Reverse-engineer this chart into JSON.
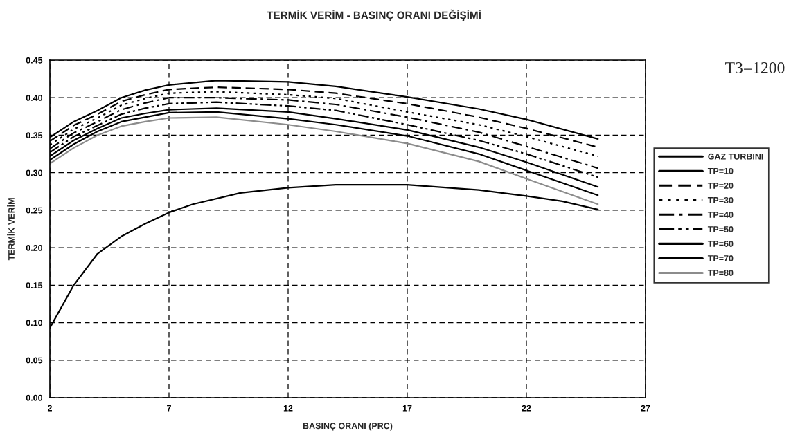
{
  "chart_data": {
    "type": "line",
    "title": "TERMİK VERİM - BASINÇ ORANI DEĞİŞİMİ",
    "xlabel": "BASINÇ ORANI (PRC)",
    "ylabel": "TERMİK VERİM",
    "annotations": [
      "T3=1200"
    ],
    "xlim": [
      2,
      27
    ],
    "xticks": [
      2,
      7,
      12,
      17,
      22,
      27
    ],
    "ylim": [
      0,
      0.45
    ],
    "yticks": [
      {
        "value": 0,
        "label": "0.00"
      },
      {
        "value": 0.05,
        "label": "0.05"
      },
      {
        "value": 0.1,
        "label": "0.10"
      },
      {
        "value": 0.15,
        "label": "0.15"
      },
      {
        "value": 0.2,
        "label": "0.20"
      },
      {
        "value": 0.25,
        "label": "0.25"
      },
      {
        "value": 0.3,
        "label": "0.30"
      },
      {
        "value": 0.35,
        "label": "0.35"
      },
      {
        "value": 0.4,
        "label": "0.40"
      },
      {
        "value": 0.45,
        "label": "0.45"
      }
    ],
    "grid": true,
    "legend": "right",
    "x": [
      2,
      3,
      4,
      5,
      6,
      7,
      9,
      12,
      14,
      17,
      20,
      22,
      25
    ],
    "series": [
      {
        "name": "GAZ TURBINI",
        "color": "#000000",
        "line_style": "solid",
        "x": [
          2,
          3,
          4,
          5,
          6,
          7,
          8,
          10,
          12,
          14,
          17,
          20,
          22,
          23.5,
          25
        ],
        "values": [
          0.093,
          0.15,
          0.192,
          0.215,
          0.232,
          0.247,
          0.258,
          0.273,
          0.28,
          0.284,
          0.284,
          0.277,
          0.269,
          0.262,
          0.251
        ]
      },
      {
        "name": "TP=10",
        "color": "#000000",
        "line_style": "solid",
        "values": [
          0.347,
          0.368,
          0.383,
          0.4,
          0.41,
          0.417,
          0.423,
          0.421,
          0.415,
          0.401,
          0.385,
          0.371,
          0.345
        ]
      },
      {
        "name": "TP=20",
        "color": "#000000",
        "line_style": "dashed",
        "values": [
          0.342,
          0.363,
          0.378,
          0.395,
          0.404,
          0.411,
          0.414,
          0.411,
          0.406,
          0.392,
          0.374,
          0.359,
          0.334
        ]
      },
      {
        "name": "TP=30",
        "color": "#000000",
        "line_style": "dotted",
        "values": [
          0.337,
          0.358,
          0.373,
          0.39,
          0.399,
          0.406,
          0.408,
          0.404,
          0.399,
          0.381,
          0.364,
          0.348,
          0.322
        ]
      },
      {
        "name": "TP=40",
        "color": "#000000",
        "line_style": "dashdot",
        "values": [
          0.332,
          0.353,
          0.368,
          0.384,
          0.393,
          0.4,
          0.4,
          0.397,
          0.391,
          0.374,
          0.354,
          0.335,
          0.306
        ]
      },
      {
        "name": "TP=50",
        "color": "#000000",
        "line_style": "dashdotdot",
        "values": [
          0.327,
          0.348,
          0.363,
          0.378,
          0.386,
          0.392,
          0.394,
          0.389,
          0.383,
          0.364,
          0.343,
          0.325,
          0.294
        ]
      },
      {
        "name": "TP=60",
        "color": "#000000",
        "line_style": "solid",
        "values": [
          0.322,
          0.343,
          0.359,
          0.373,
          0.379,
          0.384,
          0.386,
          0.381,
          0.372,
          0.357,
          0.334,
          0.314,
          0.281
        ]
      },
      {
        "name": "TP=70",
        "color": "#000000",
        "line_style": "solid",
        "values": [
          0.317,
          0.338,
          0.355,
          0.368,
          0.374,
          0.38,
          0.381,
          0.372,
          0.364,
          0.349,
          0.325,
          0.303,
          0.27
        ]
      },
      {
        "name": "TP=80",
        "color": "#8c8c8c",
        "line_style": "solid",
        "values": [
          0.312,
          0.333,
          0.35,
          0.362,
          0.368,
          0.373,
          0.374,
          0.364,
          0.355,
          0.339,
          0.315,
          0.292,
          0.258
        ]
      }
    ]
  }
}
